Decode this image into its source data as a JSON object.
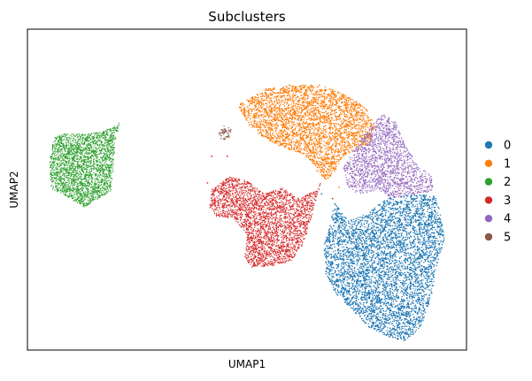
{
  "chart_data": {
    "type": "scatter",
    "title": "Subclusters",
    "xlabel": "UMAP1",
    "ylabel": "UMAP2",
    "grid": false,
    "ticks": "none",
    "xlim": [
      0,
      10
    ],
    "ylim": [
      0,
      7.2
    ],
    "legend_placement": "right",
    "series": [
      {
        "name": "0",
        "color": "#1f77b4",
        "approx_points": 9000,
        "shape": [
          [
            7.0,
            3.3
          ],
          [
            7.3,
            2.9
          ],
          [
            7.6,
            3.0
          ],
          [
            8.2,
            3.4
          ],
          [
            8.8,
            3.5
          ],
          [
            9.3,
            3.45
          ],
          [
            9.4,
            3.1
          ],
          [
            9.5,
            2.5
          ],
          [
            9.3,
            1.8
          ],
          [
            9.2,
            1.2
          ],
          [
            9.0,
            0.6
          ],
          [
            8.8,
            0.35
          ],
          [
            8.6,
            0.2
          ],
          [
            8.2,
            0.3
          ],
          [
            7.8,
            0.5
          ],
          [
            7.4,
            0.9
          ],
          [
            7.0,
            1.3
          ],
          [
            6.8,
            1.7
          ],
          [
            6.75,
            2.3
          ],
          [
            6.9,
            2.9
          ]
        ]
      },
      {
        "name": "1",
        "color": "#ff7f0e",
        "approx_points": 6500,
        "shape": [
          [
            4.8,
            5.5
          ],
          [
            5.4,
            5.85
          ],
          [
            6.0,
            5.95
          ],
          [
            6.7,
            5.95
          ],
          [
            7.3,
            5.7
          ],
          [
            7.7,
            5.45
          ],
          [
            7.9,
            5.05
          ],
          [
            7.8,
            4.6
          ],
          [
            7.5,
            4.5
          ],
          [
            7.2,
            4.35
          ],
          [
            7.0,
            4.0
          ],
          [
            6.8,
            3.8
          ],
          [
            6.6,
            4.0
          ],
          [
            6.3,
            4.4
          ],
          [
            5.8,
            4.55
          ],
          [
            5.3,
            4.8
          ],
          [
            5.0,
            5.1
          ]
        ]
      },
      {
        "name": "2",
        "color": "#2ca02c",
        "approx_points": 2500,
        "shape": [
          [
            0.6,
            4.75
          ],
          [
            0.8,
            4.85
          ],
          [
            1.3,
            4.85
          ],
          [
            1.7,
            4.9
          ],
          [
            1.95,
            5.0
          ],
          [
            2.1,
            5.1
          ],
          [
            2.0,
            4.7
          ],
          [
            1.95,
            4.0
          ],
          [
            1.9,
            3.55
          ],
          [
            1.7,
            3.45
          ],
          [
            1.3,
            3.2
          ],
          [
            0.8,
            3.5
          ],
          [
            0.55,
            3.6
          ],
          [
            0.5,
            4.2
          ]
        ]
      },
      {
        "name": "3",
        "color": "#d62728",
        "approx_points": 3000,
        "shape": [
          [
            4.2,
            3.6
          ],
          [
            4.6,
            3.9
          ],
          [
            5.0,
            3.8
          ],
          [
            5.4,
            3.5
          ],
          [
            5.8,
            3.65
          ],
          [
            6.2,
            3.4
          ],
          [
            6.6,
            3.6
          ],
          [
            6.7,
            3.8
          ],
          [
            6.5,
            3.1
          ],
          [
            6.3,
            2.4
          ],
          [
            6.0,
            2.0
          ],
          [
            5.6,
            1.9
          ],
          [
            5.1,
            1.85
          ],
          [
            4.95,
            2.1
          ],
          [
            5.0,
            2.6
          ],
          [
            4.7,
            2.95
          ],
          [
            4.3,
            3.0
          ],
          [
            4.15,
            3.2
          ]
        ]
      },
      {
        "name": "4",
        "color": "#9467bd",
        "approx_points": 1800,
        "shape": [
          [
            7.5,
            4.6
          ],
          [
            7.8,
            5.0
          ],
          [
            8.1,
            5.3
          ],
          [
            8.4,
            5.1
          ],
          [
            8.6,
            4.6
          ],
          [
            8.9,
            4.15
          ],
          [
            9.2,
            3.9
          ],
          [
            9.25,
            3.55
          ],
          [
            8.8,
            3.5
          ],
          [
            8.3,
            3.4
          ],
          [
            8.0,
            3.6
          ],
          [
            7.6,
            3.5
          ],
          [
            7.3,
            3.6
          ],
          [
            7.2,
            4.1
          ]
        ]
      },
      {
        "name": "5",
        "color": "#8c564b",
        "approx_points": 60,
        "shape": [
          [
            4.35,
            4.9
          ],
          [
            4.5,
            5.05
          ],
          [
            4.65,
            4.95
          ],
          [
            4.6,
            4.75
          ],
          [
            4.4,
            4.7
          ]
        ]
      }
    ]
  }
}
